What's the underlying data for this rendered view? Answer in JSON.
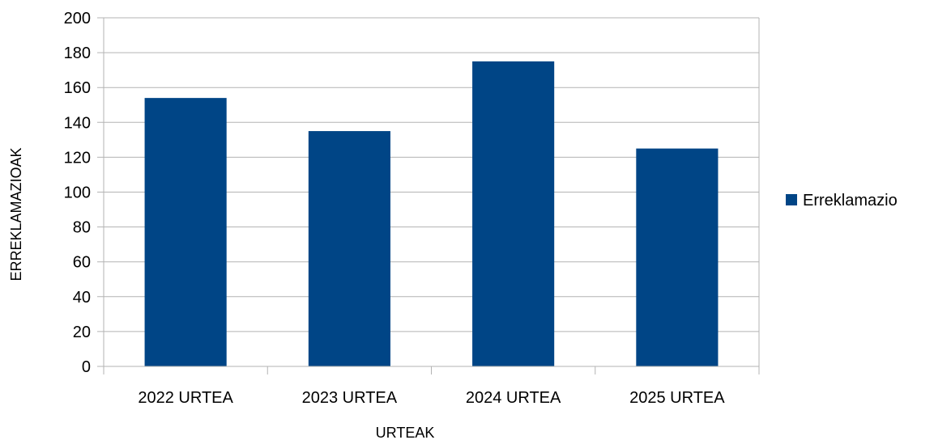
{
  "chart_data": {
    "type": "bar",
    "categories": [
      "2022 URTEA",
      "2023 URTEA",
      "2024 URTEA",
      "2025 URTEA"
    ],
    "series": [
      {
        "name": "Erreklamazio",
        "values": [
          154,
          135,
          175,
          125
        ],
        "color": "#004586"
      }
    ],
    "title": "",
    "xlabel": "URTEAK",
    "ylabel": "ERREKLAMAZIOAK",
    "ylim": [
      0,
      200
    ],
    "yticks": [
      0,
      20,
      40,
      60,
      80,
      100,
      120,
      140,
      160,
      180,
      200
    ],
    "grid": true,
    "legend_position": "right",
    "gridline_color": "#b3b3b3",
    "axis_color": "#b3b3b3"
  }
}
